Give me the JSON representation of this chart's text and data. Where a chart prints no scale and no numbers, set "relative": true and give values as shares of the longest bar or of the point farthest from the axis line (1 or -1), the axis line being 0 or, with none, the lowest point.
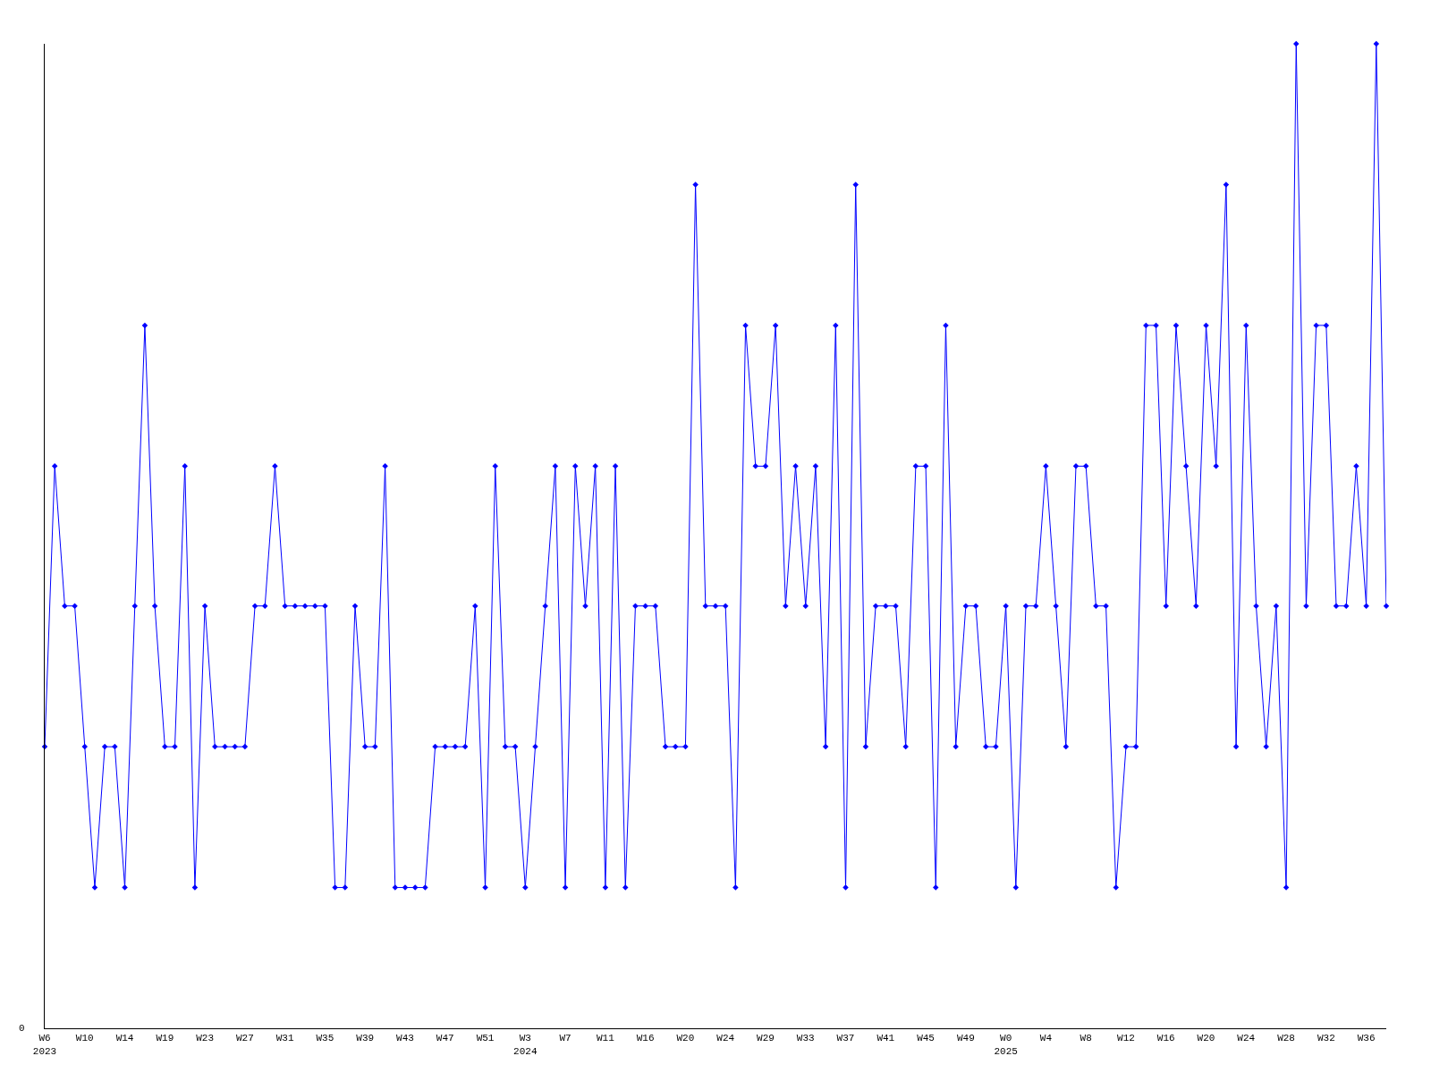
{
  "chart_data": {
    "type": "line",
    "relative": true,
    "marker": "diamond",
    "line_style": "solid",
    "categories": [
      "W6\n2023",
      null,
      null,
      null,
      "W10",
      null,
      null,
      null,
      "W14",
      null,
      null,
      null,
      "W19",
      null,
      null,
      null,
      "W23",
      null,
      null,
      null,
      "W27",
      null,
      null,
      null,
      "W31",
      null,
      null,
      null,
      "W35",
      null,
      null,
      null,
      "W39",
      null,
      null,
      null,
      "W43",
      null,
      null,
      null,
      "W47",
      null,
      null,
      null,
      "W51",
      null,
      null,
      null,
      "W3\n2024",
      null,
      null,
      null,
      "W7",
      null,
      null,
      null,
      "W11",
      null,
      null,
      null,
      "W16",
      null,
      null,
      null,
      "W20",
      null,
      null,
      null,
      "W24",
      null,
      null,
      null,
      "W29",
      null,
      null,
      null,
      "W33",
      null,
      null,
      null,
      "W37",
      null,
      null,
      null,
      "W41",
      null,
      null,
      null,
      "W45",
      null,
      null,
      null,
      "W49",
      null,
      null,
      null,
      "W0\n2025",
      null,
      null,
      null,
      "W4",
      null,
      null,
      null,
      "W8",
      null,
      null,
      null,
      "W12",
      null,
      null,
      null,
      "W16",
      null,
      null,
      null,
      "W20",
      null,
      null,
      null,
      "W24",
      null,
      null,
      null,
      "W28",
      null,
      null,
      null,
      "W32",
      null,
      null,
      null,
      "W36",
      null,
      null
    ],
    "series": [
      {
        "color": "#0000ff",
        "values": [
          0.286,
          0.571,
          0.429,
          0.429,
          0.286,
          0.143,
          0.286,
          0.286,
          0.143,
          0.429,
          0.714,
          0.429,
          0.286,
          0.286,
          0.571,
          0.143,
          0.429,
          0.286,
          0.286,
          0.286,
          0.286,
          0.429,
          0.429,
          0.571,
          0.429,
          0.429,
          0.429,
          0.429,
          0.429,
          0.143,
          0.143,
          0.429,
          0.286,
          0.286,
          0.571,
          0.143,
          0.143,
          0.143,
          0.143,
          0.286,
          0.286,
          0.286,
          0.286,
          0.429,
          0.143,
          0.571,
          0.286,
          0.286,
          0.143,
          0.286,
          0.429,
          0.571,
          0.143,
          0.571,
          0.429,
          0.571,
          0.143,
          0.571,
          0.143,
          0.429,
          0.429,
          0.429,
          0.286,
          0.286,
          0.286,
          0.857,
          0.429,
          0.429,
          0.429,
          0.143,
          0.714,
          0.571,
          0.571,
          0.714,
          0.429,
          0.571,
          0.429,
          0.571,
          0.286,
          0.714,
          0.143,
          0.857,
          0.286,
          0.429,
          0.429,
          0.429,
          0.286,
          0.571,
          0.571,
          0.143,
          0.714,
          0.286,
          0.429,
          0.429,
          0.286,
          0.286,
          0.429,
          0.143,
          0.429,
          0.429,
          0.571,
          0.429,
          0.286,
          0.571,
          0.571,
          0.429,
          0.429,
          0.143,
          0.286,
          0.286,
          0.714,
          0.714,
          0.429,
          0.714,
          0.571,
          0.429,
          0.714,
          0.571,
          0.857,
          0.286,
          0.714,
          0.429,
          0.286,
          0.429,
          0.143,
          1,
          0.429,
          0.714,
          0.714,
          0.429,
          0.429,
          0.571,
          0.429,
          1,
          0.429
        ]
      }
    ],
    "annotations": [
      "0"
    ]
  }
}
